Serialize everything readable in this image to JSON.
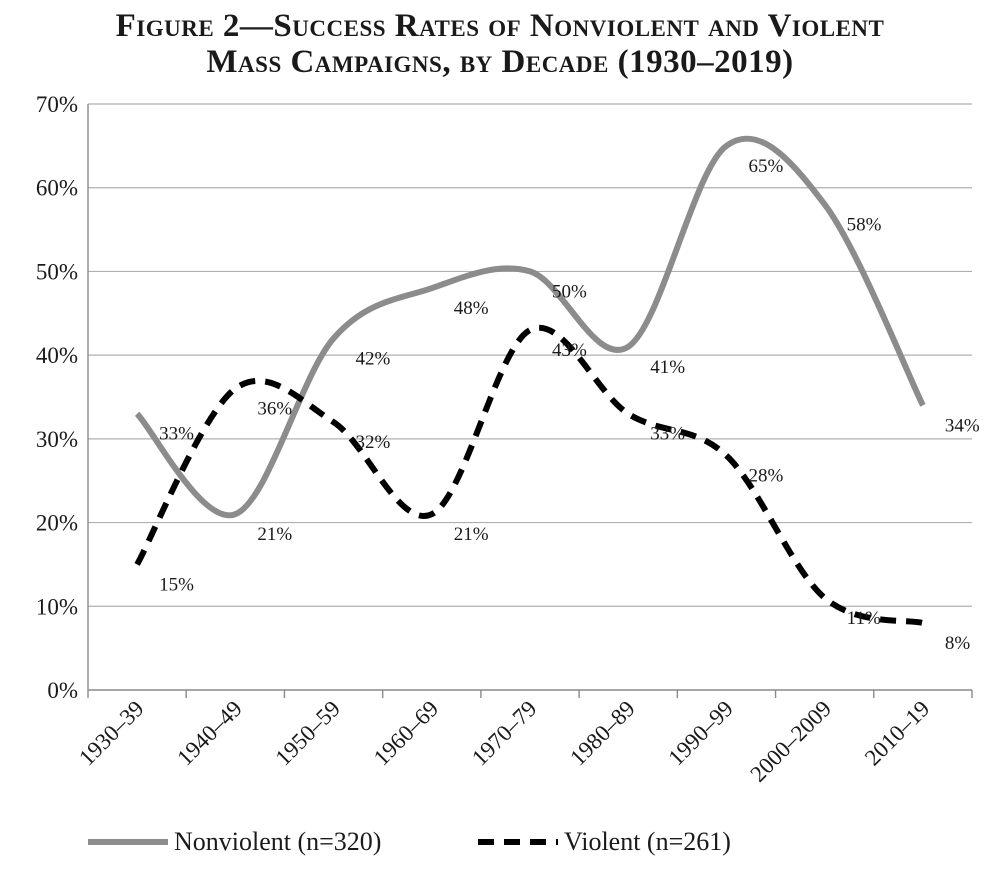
{
  "chart_data": {
    "type": "line",
    "title": [
      "Figure 2—Success Rates of Nonviolent and Violent",
      "Mass Campaigns, by Decade (1930–2019)"
    ],
    "categories": [
      "1930–39",
      "1940–49",
      "1950–59",
      "1960–69",
      "1970–79",
      "1980–89",
      "1990–99",
      "2000–2009",
      "2010–19"
    ],
    "yticks": [
      "0%",
      "10%",
      "20%",
      "30%",
      "40%",
      "50%",
      "60%",
      "70%"
    ],
    "ylim": [
      0,
      70
    ],
    "grid": true,
    "legend_position": "bottom",
    "series": [
      {
        "name": "Nonviolent (n=320)",
        "style": "solid",
        "color": "#8c8c8c",
        "values": [
          33,
          21,
          42,
          48,
          50,
          41,
          65,
          58,
          34
        ],
        "labels": [
          "33%",
          "21%",
          "42%",
          "48%",
          "50%",
          "41%",
          "65%",
          "58%",
          "34%"
        ]
      },
      {
        "name": "Violent (n=261)",
        "style": "dashed",
        "color": "#000000",
        "values": [
          15,
          36,
          32,
          21,
          43,
          33,
          28,
          11,
          8
        ],
        "labels": [
          "15%",
          "36%",
          "32%",
          "21%",
          "43%",
          "33%",
          "28%",
          "11%",
          "8%"
        ]
      }
    ]
  }
}
